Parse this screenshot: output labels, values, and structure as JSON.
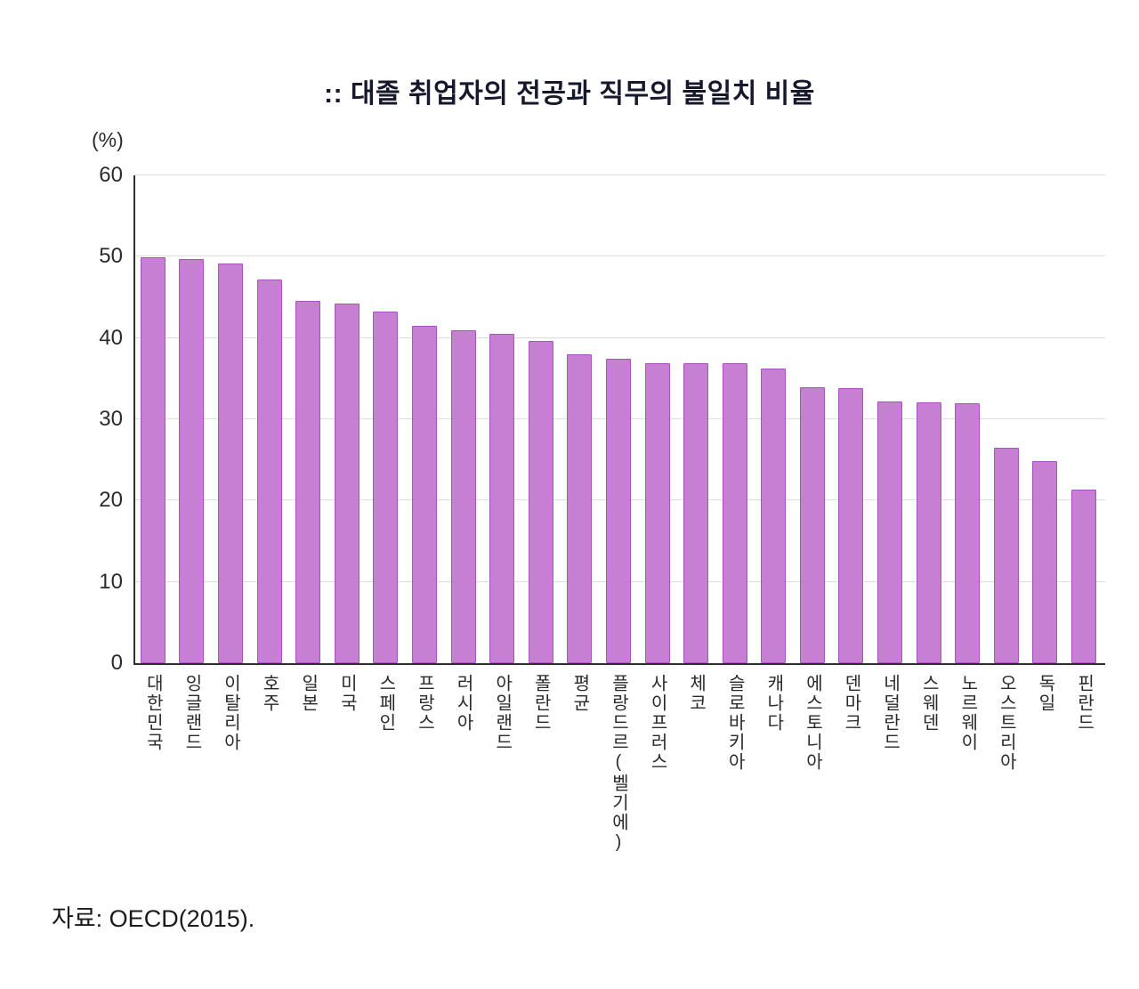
{
  "title": ":: 대졸 취업자의 전공과 직무의 불일치 비율",
  "y_axis_unit": "(%)",
  "source": "자료: OECD(2015).",
  "colors": {
    "bar_fill": "#c77fd3",
    "bar_border": "#a854bc",
    "axis": "#2e2e2e",
    "gridline": "#dcdcdc",
    "title_text": "#16182e"
  },
  "chart_data": {
    "type": "bar",
    "title": "대졸 취업자의 전공과 직무의 불일치 비율",
    "xlabel": "",
    "ylabel": "(%)",
    "ylim": [
      0,
      60
    ],
    "yticks": [
      0,
      10,
      20,
      30,
      40,
      50,
      60
    ],
    "grid": true,
    "legend": "none",
    "categories": [
      "대한민국",
      "잉글랜드",
      "이탈리아",
      "호주",
      "일본",
      "미국",
      "스페인",
      "프랑스",
      "러시아",
      "아일랜드",
      "폴란드",
      "평균",
      "플랑드르(벨기에)",
      "사이프러스",
      "체코",
      "슬로바키아",
      "캐나다",
      "에스토니아",
      "덴마크",
      "네덜란드",
      "스웨덴",
      "노르웨이",
      "오스트리아",
      "독일",
      "핀란드"
    ],
    "values": [
      49.9,
      49.7,
      49.2,
      47.2,
      44.6,
      44.2,
      43.2,
      41.5,
      41.0,
      40.5,
      39.6,
      38.0,
      37.4,
      36.9,
      36.9,
      36.9,
      36.2,
      33.9,
      33.8,
      32.2,
      32.1,
      32.0,
      26.5,
      24.9,
      21.4
    ]
  }
}
